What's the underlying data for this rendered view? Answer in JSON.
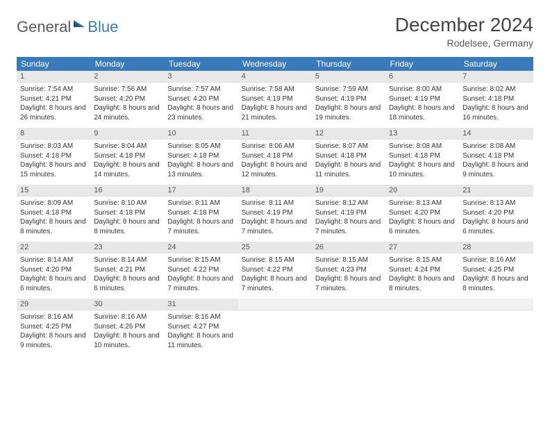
{
  "logo": {
    "part1": "General",
    "part2": "Blue"
  },
  "title": "December 2024",
  "location": "Rodelsee, Germany",
  "colors": {
    "header_bg": "#3a7ab8",
    "header_text": "#ffffff",
    "daynum_bg": "#e8e8e8",
    "row_separator": "#3a7ab8",
    "text": "#333333",
    "logo_gray": "#5a5a5a",
    "logo_blue": "#3a7ab8"
  },
  "weekdays": [
    "Sunday",
    "Monday",
    "Tuesday",
    "Wednesday",
    "Thursday",
    "Friday",
    "Saturday"
  ],
  "weeks": [
    [
      {
        "day": "1",
        "sunrise": "7:54 AM",
        "sunset": "4:21 PM",
        "daylight": "8 hours and 26 minutes."
      },
      {
        "day": "2",
        "sunrise": "7:56 AM",
        "sunset": "4:20 PM",
        "daylight": "8 hours and 24 minutes."
      },
      {
        "day": "3",
        "sunrise": "7:57 AM",
        "sunset": "4:20 PM",
        "daylight": "8 hours and 23 minutes."
      },
      {
        "day": "4",
        "sunrise": "7:58 AM",
        "sunset": "4:19 PM",
        "daylight": "8 hours and 21 minutes."
      },
      {
        "day": "5",
        "sunrise": "7:59 AM",
        "sunset": "4:19 PM",
        "daylight": "8 hours and 19 minutes."
      },
      {
        "day": "6",
        "sunrise": "8:00 AM",
        "sunset": "4:19 PM",
        "daylight": "8 hours and 18 minutes."
      },
      {
        "day": "7",
        "sunrise": "8:02 AM",
        "sunset": "4:18 PM",
        "daylight": "8 hours and 16 minutes."
      }
    ],
    [
      {
        "day": "8",
        "sunrise": "8:03 AM",
        "sunset": "4:18 PM",
        "daylight": "8 hours and 15 minutes."
      },
      {
        "day": "9",
        "sunrise": "8:04 AM",
        "sunset": "4:18 PM",
        "daylight": "8 hours and 14 minutes."
      },
      {
        "day": "10",
        "sunrise": "8:05 AM",
        "sunset": "4:18 PM",
        "daylight": "8 hours and 13 minutes."
      },
      {
        "day": "11",
        "sunrise": "8:06 AM",
        "sunset": "4:18 PM",
        "daylight": "8 hours and 12 minutes."
      },
      {
        "day": "12",
        "sunrise": "8:07 AM",
        "sunset": "4:18 PM",
        "daylight": "8 hours and 11 minutes."
      },
      {
        "day": "13",
        "sunrise": "8:08 AM",
        "sunset": "4:18 PM",
        "daylight": "8 hours and 10 minutes."
      },
      {
        "day": "14",
        "sunrise": "8:08 AM",
        "sunset": "4:18 PM",
        "daylight": "8 hours and 9 minutes."
      }
    ],
    [
      {
        "day": "15",
        "sunrise": "8:09 AM",
        "sunset": "4:18 PM",
        "daylight": "8 hours and 8 minutes."
      },
      {
        "day": "16",
        "sunrise": "8:10 AM",
        "sunset": "4:18 PM",
        "daylight": "8 hours and 8 minutes."
      },
      {
        "day": "17",
        "sunrise": "8:11 AM",
        "sunset": "4:18 PM",
        "daylight": "8 hours and 7 minutes."
      },
      {
        "day": "18",
        "sunrise": "8:11 AM",
        "sunset": "4:19 PM",
        "daylight": "8 hours and 7 minutes."
      },
      {
        "day": "19",
        "sunrise": "8:12 AM",
        "sunset": "4:19 PM",
        "daylight": "8 hours and 7 minutes."
      },
      {
        "day": "20",
        "sunrise": "8:13 AM",
        "sunset": "4:20 PM",
        "daylight": "8 hours and 6 minutes."
      },
      {
        "day": "21",
        "sunrise": "8:13 AM",
        "sunset": "4:20 PM",
        "daylight": "8 hours and 6 minutes."
      }
    ],
    [
      {
        "day": "22",
        "sunrise": "8:14 AM",
        "sunset": "4:20 PM",
        "daylight": "8 hours and 6 minutes."
      },
      {
        "day": "23",
        "sunrise": "8:14 AM",
        "sunset": "4:21 PM",
        "daylight": "8 hours and 6 minutes."
      },
      {
        "day": "24",
        "sunrise": "8:15 AM",
        "sunset": "4:22 PM",
        "daylight": "8 hours and 7 minutes."
      },
      {
        "day": "25",
        "sunrise": "8:15 AM",
        "sunset": "4:22 PM",
        "daylight": "8 hours and 7 minutes."
      },
      {
        "day": "26",
        "sunrise": "8:15 AM",
        "sunset": "4:23 PM",
        "daylight": "8 hours and 7 minutes."
      },
      {
        "day": "27",
        "sunrise": "8:15 AM",
        "sunset": "4:24 PM",
        "daylight": "8 hours and 8 minutes."
      },
      {
        "day": "28",
        "sunrise": "8:16 AM",
        "sunset": "4:25 PM",
        "daylight": "8 hours and 8 minutes."
      }
    ],
    [
      {
        "day": "29",
        "sunrise": "8:16 AM",
        "sunset": "4:25 PM",
        "daylight": "8 hours and 9 minutes."
      },
      {
        "day": "30",
        "sunrise": "8:16 AM",
        "sunset": "4:26 PM",
        "daylight": "8 hours and 10 minutes."
      },
      {
        "day": "31",
        "sunrise": "8:16 AM",
        "sunset": "4:27 PM",
        "daylight": "8 hours and 11 minutes."
      },
      null,
      null,
      null,
      null
    ]
  ],
  "labels": {
    "sunrise": "Sunrise:",
    "sunset": "Sunset:",
    "daylight": "Daylight:"
  }
}
